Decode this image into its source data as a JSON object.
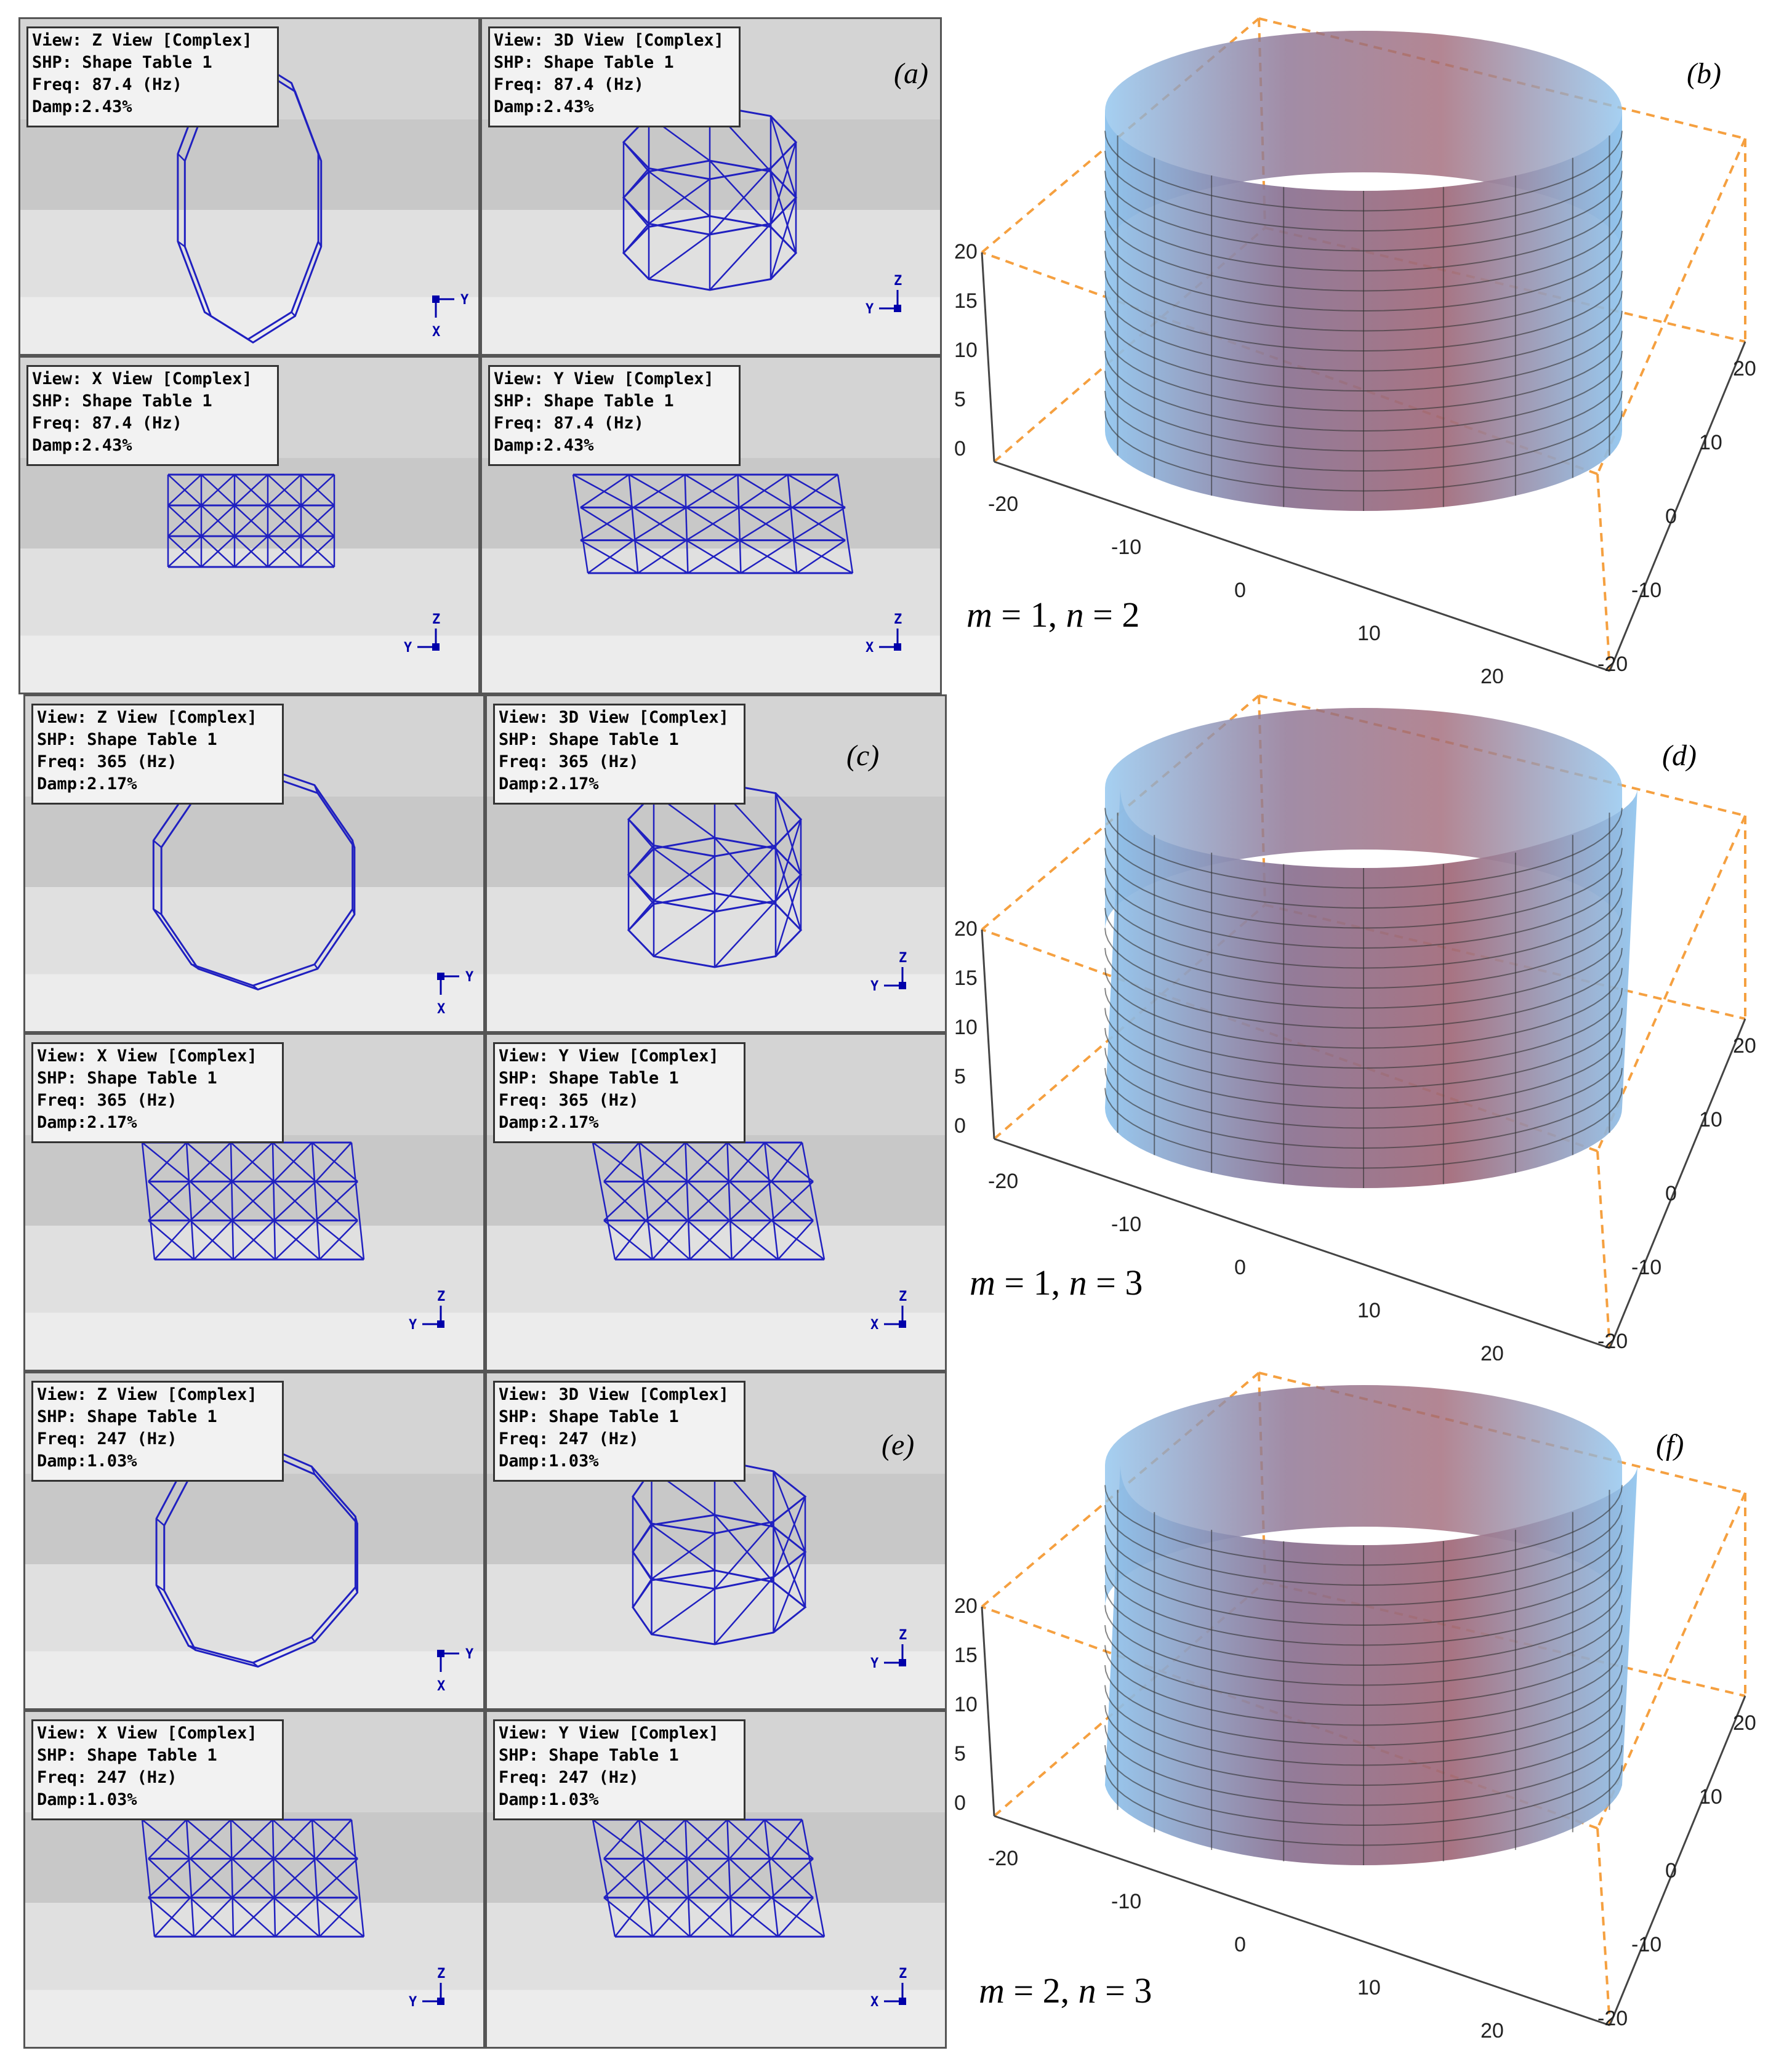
{
  "colors": {
    "wire": "#2020c0",
    "frame_dash": "#f5a040",
    "surface_blue": "#8fc0e8",
    "surface_red": "#9a6070"
  },
  "panels_a": [
    {
      "view": "View: Z View [Complex]",
      "shp": "SHP: Shape Table 1",
      "freq": "Freq: 87.4 (Hz)",
      "damp": "Damp:2.43%",
      "axis_h": "Y",
      "axis_v": "X"
    },
    {
      "view": "View: 3D View [Complex]",
      "shp": "SHP: Shape Table 1",
      "freq": "Freq: 87.4 (Hz)",
      "damp": "Damp:2.43%",
      "axis_h": "Y",
      "axis_v": "Z"
    },
    {
      "view": "View: X View [Complex]",
      "shp": "SHP: Shape Table 1",
      "freq": "Freq: 87.4 (Hz)",
      "damp": "Damp:2.43%",
      "axis_h": "Y",
      "axis_v": "Z"
    },
    {
      "view": "View: Y View [Complex]",
      "shp": "SHP: Shape Table 1",
      "freq": "Freq: 87.4 (Hz)",
      "damp": "Damp:2.43%",
      "axis_h": "X",
      "axis_v": "Z"
    }
  ],
  "panels_c": [
    {
      "view": "View: Z View [Complex]",
      "shp": "SHP: Shape Table 1",
      "freq": "Freq: 365 (Hz)",
      "damp": "Damp:2.17%",
      "axis_h": "Y",
      "axis_v": "X"
    },
    {
      "view": "View: 3D View [Complex]",
      "shp": "SHP: Shape Table 1",
      "freq": "Freq: 365 (Hz)",
      "damp": "Damp:2.17%",
      "axis_h": "Y",
      "axis_v": "Z"
    },
    {
      "view": "View: X View [Complex]",
      "shp": "SHP: Shape Table 1",
      "freq": "Freq: 365 (Hz)",
      "damp": "Damp:2.17%",
      "axis_h": "Y",
      "axis_v": "Z"
    },
    {
      "view": "View: Y View [Complex]",
      "shp": "SHP: Shape Table 1",
      "freq": "Freq: 365 (Hz)",
      "damp": "Damp:2.17%",
      "axis_h": "X",
      "axis_v": "Z"
    }
  ],
  "panels_e": [
    {
      "view": "View: Z View [Complex]",
      "shp": "SHP: Shape Table 1",
      "freq": "Freq: 247 (Hz)",
      "damp": "Damp:1.03%",
      "axis_h": "Y",
      "axis_v": "X"
    },
    {
      "view": "View: 3D View [Complex]",
      "shp": "SHP: Shape Table 1",
      "freq": "Freq: 247 (Hz)",
      "damp": "Damp:1.03%",
      "axis_h": "Y",
      "axis_v": "Z"
    },
    {
      "view": "View: X View [Complex]",
      "shp": "SHP: Shape Table 1",
      "freq": "Freq: 247 (Hz)",
      "damp": "Damp:1.03%",
      "axis_h": "Y",
      "axis_v": "Z"
    },
    {
      "view": "View: Y View [Complex]",
      "shp": "SHP: Shape Table 1",
      "freq": "Freq: 247 (Hz)",
      "damp": "Damp:1.03%",
      "axis_h": "X",
      "axis_v": "Z"
    }
  ],
  "labels": {
    "a": "(a)",
    "b": "(b)",
    "c": "(c)",
    "d": "(d)",
    "e": "(e)",
    "f": "(f)"
  },
  "modes": [
    {
      "m_label": "m",
      "m": "1",
      "n_label": "n",
      "n": "2"
    },
    {
      "m_label": "m",
      "m": "1",
      "n_label": "n",
      "n": "3"
    },
    {
      "m_label": "m",
      "m": "2",
      "n_label": "n",
      "n": "3"
    }
  ],
  "axis_ticks": {
    "z": [
      "20",
      "15",
      "10",
      "5",
      "0"
    ],
    "x": [
      "-20",
      "-10",
      "0",
      "10",
      "20"
    ],
    "y": [
      "20",
      "10",
      "0",
      "-10",
      "-20"
    ]
  }
}
